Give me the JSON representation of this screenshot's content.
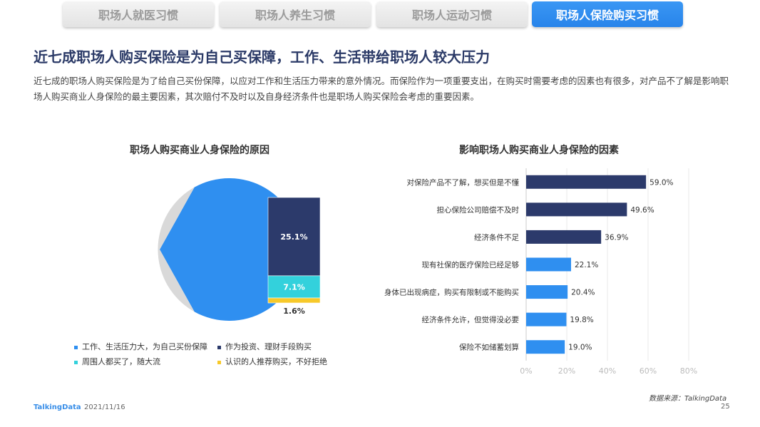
{
  "tabs": [
    {
      "label": "职场人就医习惯",
      "active": false
    },
    {
      "label": "职场人养生习惯",
      "active": false
    },
    {
      "label": "职场人运动习惯",
      "active": false
    },
    {
      "label": "职场人保险购买习惯",
      "active": true
    }
  ],
  "headline": "近七成职场人购买保险是为自己买保障，工作、生活带给职场人较大压力",
  "description": "近七成的职场人购买保险是为了给自己买份保障，以应对工作和生活压力带来的意外情况。而保险作为一项重要支出，在购买时需要考虑的因素也有很多，对产品不了解是影响职场人购买商业人身保险的最主要因素，其次赔付不及时以及自身经济条件也是职场人购买保险会考虑的重要因素。",
  "colors": {
    "blue": "#2f8ff0",
    "navy": "#2c3a6b",
    "gray": "#d9d9d9",
    "cyan": "#33d1dc",
    "yellow": "#f7c92a"
  },
  "chart_data": [
    {
      "type": "pie",
      "title": "职场人购买商业人身保险的原因",
      "slices": [
        {
          "label": "工作、生活压力大，为自己买份保障",
          "value": 66.2,
          "color": "#2f8ff0"
        },
        {
          "label": "作为投资、理财手段购买",
          "value": 25.1,
          "color": "#2c3a6b"
        },
        {
          "label": "周围人都买了，随大流",
          "value": 7.1,
          "color": "#33d1dc"
        },
        {
          "label": "认识的人推荐购买，不好拒绝",
          "value": 1.6,
          "color": "#f7c92a"
        }
      ],
      "legend_position": "bottom"
    },
    {
      "type": "bar",
      "orientation": "horizontal",
      "title": "影响职场人购买商业人身保险的因素",
      "categories": [
        "对保险产品不了解，想买但是不懂",
        "担心保险公司赔偿不及时",
        "经济条件不足",
        "现有社保的医疗保险已经足够",
        "身体已出现病症，购买有限制或不能购买",
        "经济条件允许，但觉得没必要",
        "保险不如储蓄划算"
      ],
      "values": [
        59.0,
        49.6,
        36.9,
        22.1,
        20.4,
        19.8,
        19.0
      ],
      "value_labels": [
        "59.0%",
        "49.6%",
        "36.9%",
        "22.1%",
        "20.4%",
        "19.8%",
        "19.0%"
      ],
      "bar_colors": [
        "#2c3a6b",
        "#2c3a6b",
        "#2c3a6b",
        "#2f8ff0",
        "#2f8ff0",
        "#2f8ff0",
        "#2f8ff0"
      ],
      "xlim": [
        0,
        80
      ],
      "ticks": [
        "0%",
        "20%",
        "40%",
        "60%",
        "80%"
      ],
      "grid": true
    }
  ],
  "footer": {
    "logo": "TalkingData",
    "date": "2021/11/16",
    "source": "数据来源：TalkingData",
    "page": "25"
  }
}
